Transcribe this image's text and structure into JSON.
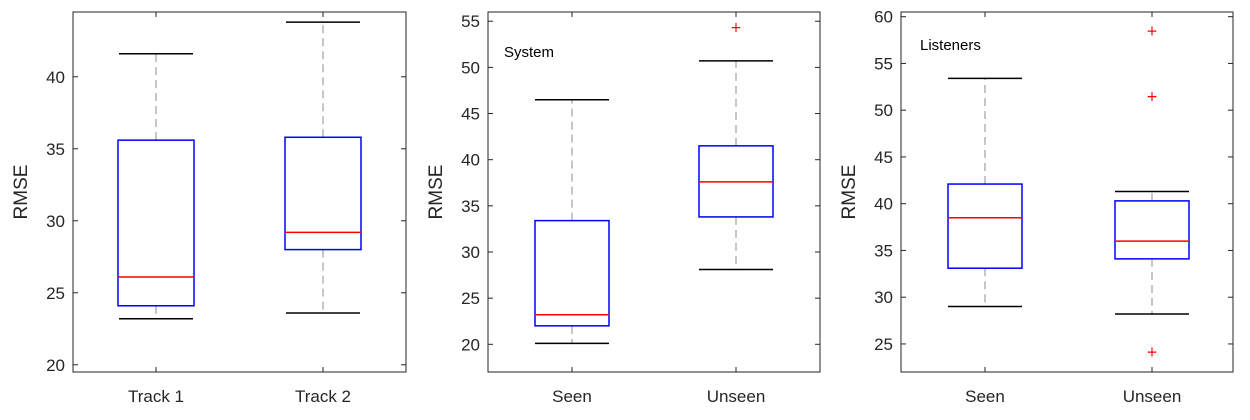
{
  "chart_data": [
    {
      "type": "box",
      "ylabel": "RMSE",
      "annotation": "",
      "ylim": [
        19.5,
        44.5
      ],
      "yticks": [
        20,
        25,
        30,
        35,
        40
      ],
      "categories": [
        "Track 1",
        "Track 2"
      ],
      "boxes": [
        {
          "whisker_low": 23.2,
          "q1": 24.1,
          "median": 26.1,
          "q3": 35.6,
          "whisker_high": 41.6,
          "outliers": []
        },
        {
          "whisker_low": 23.6,
          "q1": 28.0,
          "median": 29.2,
          "q3": 35.8,
          "whisker_high": 43.8,
          "outliers": []
        }
      ]
    },
    {
      "type": "box",
      "ylabel": "RMSE",
      "annotation": "System",
      "ylim": [
        17.0,
        56.0
      ],
      "yticks": [
        20,
        25,
        30,
        35,
        40,
        45,
        50,
        55
      ],
      "categories": [
        "Seen",
        "Unseen"
      ],
      "boxes": [
        {
          "whisker_low": 20.1,
          "q1": 22.0,
          "median": 23.2,
          "q3": 33.4,
          "whisker_high": 46.5,
          "outliers": []
        },
        {
          "whisker_low": 28.1,
          "q1": 33.8,
          "median": 37.6,
          "q3": 41.5,
          "whisker_high": 50.7,
          "outliers": [
            54.4
          ]
        }
      ]
    },
    {
      "type": "box",
      "ylabel": "RMSE",
      "annotation": "Listeners",
      "ylim": [
        22.0,
        60.5
      ],
      "yticks": [
        25,
        30,
        35,
        40,
        45,
        50,
        55,
        60
      ],
      "categories": [
        "Seen",
        "Unseen"
      ],
      "boxes": [
        {
          "whisker_low": 29.0,
          "q1": 33.1,
          "median": 38.5,
          "q3": 42.1,
          "whisker_high": 53.4,
          "outliers": []
        },
        {
          "whisker_low": 28.2,
          "q1": 34.1,
          "median": 36.0,
          "q3": 40.3,
          "whisker_high": 41.3,
          "outliers": [
            24.2,
            51.5,
            58.5
          ]
        }
      ]
    }
  ]
}
